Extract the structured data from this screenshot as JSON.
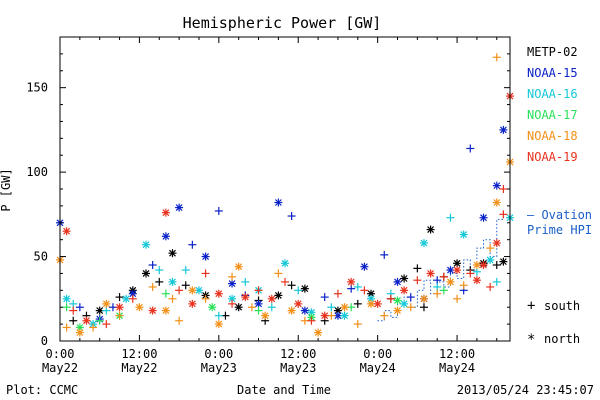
{
  "chart_data": {
    "type": "scatter",
    "title": "Hemispheric Power [GW]",
    "ylabel": "P [GW]",
    "xlabel": "Date and Time",
    "xlim": [
      0,
      68
    ],
    "ylim": [
      0,
      180
    ],
    "yticks": [
      {
        "value": 0,
        "label": "0"
      },
      {
        "value": 50,
        "label": "50"
      },
      {
        "value": 100,
        "label": "100"
      },
      {
        "value": 150,
        "label": "150"
      }
    ],
    "xticks": [
      {
        "value": 0,
        "line1": "0:00",
        "line2": "May22"
      },
      {
        "value": 12,
        "line1": "12:00",
        "line2": "May22"
      },
      {
        "value": 24,
        "line1": "0:00",
        "line2": "May23"
      },
      {
        "value": 36,
        "line1": "12:00",
        "line2": "May23"
      },
      {
        "value": 48,
        "line1": "0:00",
        "line2": "May24"
      },
      {
        "value": 60,
        "line1": "12:00",
        "line2": "May24"
      }
    ],
    "legend": [
      {
        "name": "METP-02",
        "color": "#000000"
      },
      {
        "name": "NOAA-15",
        "color": "#0a22c8"
      },
      {
        "name": "NOAA-16",
        "color": "#15c8d8"
      },
      {
        "name": "NOAA-17",
        "color": "#28e05a"
      },
      {
        "name": "NOAA-18",
        "color": "#f29018"
      },
      {
        "name": "NOAA-19",
        "color": "#e8321e"
      }
    ],
    "legend_placement": "right",
    "marker_key": {
      "south_symbol": "+",
      "south_label": "south",
      "north_symbol": "*",
      "north_label": "north"
    },
    "ovation_label_1": "— Ovation",
    "ovation_label_2": "Prime HPI",
    "ovation_color": "#1a5fc8",
    "ovation": {
      "x": [
        48,
        49,
        49,
        50,
        50,
        51,
        51,
        52,
        52,
        53,
        53,
        54,
        54,
        55,
        55,
        56,
        56,
        57,
        57,
        58,
        58,
        59,
        59,
        60,
        60,
        61,
        61,
        62,
        62,
        63,
        63,
        64,
        64,
        65,
        65,
        66,
        66,
        67,
        67
      ],
      "y": [
        12,
        12,
        18,
        18,
        14,
        14,
        22,
        22,
        26,
        26,
        20,
        20,
        30,
        30,
        36,
        36,
        28,
        28,
        35,
        35,
        32,
        32,
        40,
        40,
        37,
        37,
        48,
        48,
        42,
        42,
        55,
        55,
        60,
        60,
        50,
        50,
        72,
        72,
        76
      ]
    },
    "series": [
      {
        "name": "METP-02",
        "color": "#000000",
        "points": [
          [
            2,
            12,
            "s"
          ],
          [
            4,
            15,
            "s"
          ],
          [
            6,
            18,
            "n"
          ],
          [
            9,
            26,
            "s"
          ],
          [
            11,
            30,
            "n"
          ],
          [
            13,
            40,
            "n"
          ],
          [
            15,
            35,
            "s"
          ],
          [
            17,
            52,
            "n"
          ],
          [
            19,
            33,
            "s"
          ],
          [
            22,
            27,
            "n"
          ],
          [
            25,
            15,
            "s"
          ],
          [
            27,
            20,
            "n"
          ],
          [
            30,
            24,
            "s"
          ],
          [
            33,
            27,
            "n"
          ],
          [
            35,
            33,
            "s"
          ],
          [
            37,
            31,
            "n"
          ],
          [
            40,
            12,
            "s"
          ],
          [
            42,
            18,
            "n"
          ],
          [
            45,
            22,
            "s"
          ],
          [
            47,
            28,
            "n"
          ],
          [
            50,
            25,
            "s"
          ],
          [
            52,
            37,
            "n"
          ],
          [
            54,
            43,
            "s"
          ],
          [
            56,
            66,
            "n"
          ],
          [
            58,
            38,
            "s"
          ],
          [
            60,
            46,
            "n"
          ],
          [
            62,
            42,
            "s"
          ],
          [
            64,
            46,
            "n"
          ],
          [
            66,
            45,
            "s"
          ],
          [
            67,
            47,
            "n"
          ],
          [
            55,
            20,
            "s"
          ],
          [
            31,
            12,
            "s"
          ]
        ]
      },
      {
        "name": "NOAA-15",
        "color": "#0a22c8",
        "points": [
          [
            0,
            70,
            "n"
          ],
          [
            3,
            20,
            "s"
          ],
          [
            6,
            13,
            "n"
          ],
          [
            8,
            20,
            "s"
          ],
          [
            11,
            28,
            "n"
          ],
          [
            14,
            45,
            "s"
          ],
          [
            16,
            62,
            "n"
          ],
          [
            18,
            79,
            "n"
          ],
          [
            20,
            57,
            "s"
          ],
          [
            22,
            50,
            "n"
          ],
          [
            24,
            77,
            "s"
          ],
          [
            26,
            34,
            "n"
          ],
          [
            28,
            27,
            "s"
          ],
          [
            30,
            22,
            "n"
          ],
          [
            33,
            82,
            "n"
          ],
          [
            35,
            74,
            "s"
          ],
          [
            37,
            18,
            "n"
          ],
          [
            40,
            26,
            "s"
          ],
          [
            42,
            15,
            "n"
          ],
          [
            44,
            31,
            "s"
          ],
          [
            46,
            44,
            "n"
          ],
          [
            49,
            51,
            "s"
          ],
          [
            51,
            35,
            "n"
          ],
          [
            53,
            26,
            "s"
          ],
          [
            55,
            25,
            "n"
          ],
          [
            57,
            36,
            "s"
          ],
          [
            59,
            42,
            "n"
          ],
          [
            62,
            114,
            "s"
          ],
          [
            64,
            73,
            "n"
          ],
          [
            66,
            92,
            "n"
          ],
          [
            67,
            125,
            "n"
          ],
          [
            61,
            30,
            "s"
          ]
        ]
      },
      {
        "name": "NOAA-16",
        "color": "#15c8d8",
        "points": [
          [
            1,
            25,
            "n"
          ],
          [
            2,
            22,
            "s"
          ],
          [
            5,
            10,
            "n"
          ],
          [
            7,
            18,
            "s"
          ],
          [
            10,
            25,
            "n"
          ],
          [
            13,
            57,
            "n"
          ],
          [
            15,
            42,
            "s"
          ],
          [
            17,
            35,
            "n"
          ],
          [
            19,
            42,
            "s"
          ],
          [
            21,
            30,
            "n"
          ],
          [
            24,
            15,
            "s"
          ],
          [
            26,
            25,
            "n"
          ],
          [
            28,
            35,
            "s"
          ],
          [
            30,
            30,
            "n"
          ],
          [
            32,
            20,
            "s"
          ],
          [
            34,
            46,
            "n"
          ],
          [
            36,
            30,
            "s"
          ],
          [
            38,
            17,
            "n"
          ],
          [
            41,
            20,
            "s"
          ],
          [
            43,
            15,
            "n"
          ],
          [
            45,
            32,
            "s"
          ],
          [
            47,
            25,
            "n"
          ],
          [
            50,
            28,
            "s"
          ],
          [
            52,
            22,
            "n"
          ],
          [
            55,
            58,
            "n"
          ],
          [
            57,
            32,
            "s"
          ],
          [
            59,
            73,
            "s"
          ],
          [
            61,
            63,
            "n"
          ],
          [
            63,
            41,
            "s"
          ],
          [
            65,
            48,
            "n"
          ],
          [
            68,
            73,
            "n"
          ],
          [
            66,
            35,
            "s"
          ]
        ]
      },
      {
        "name": "NOAA-17",
        "color": "#28e05a",
        "points": [
          [
            1,
            20,
            "s"
          ],
          [
            3,
            8,
            "n"
          ],
          [
            6,
            12,
            "s"
          ],
          [
            9,
            15,
            "n"
          ],
          [
            16,
            28,
            "s"
          ],
          [
            23,
            20,
            "n"
          ],
          [
            30,
            18,
            "s"
          ],
          [
            38,
            14,
            "n"
          ],
          [
            44,
            20,
            "s"
          ],
          [
            51,
            24,
            "n"
          ],
          [
            58,
            30,
            "s"
          ]
        ]
      },
      {
        "name": "NOAA-18",
        "color": "#f29018",
        "points": [
          [
            0,
            48,
            "n"
          ],
          [
            1,
            8,
            "s"
          ],
          [
            3,
            5,
            "n"
          ],
          [
            5,
            8,
            "s"
          ],
          [
            7,
            22,
            "n"
          ],
          [
            9,
            15,
            "s"
          ],
          [
            12,
            20,
            "n"
          ],
          [
            14,
            32,
            "s"
          ],
          [
            16,
            18,
            "n"
          ],
          [
            18,
            12,
            "s"
          ],
          [
            20,
            30,
            "n"
          ],
          [
            22,
            25,
            "s"
          ],
          [
            24,
            10,
            "n"
          ],
          [
            26,
            38,
            "s"
          ],
          [
            27,
            44,
            "n"
          ],
          [
            29,
            20,
            "s"
          ],
          [
            31,
            15,
            "n"
          ],
          [
            33,
            40,
            "s"
          ],
          [
            35,
            18,
            "n"
          ],
          [
            37,
            12,
            "s"
          ],
          [
            39,
            5,
            "n"
          ],
          [
            41,
            15,
            "s"
          ],
          [
            43,
            20,
            "n"
          ],
          [
            45,
            10,
            "s"
          ],
          [
            47,
            22,
            "n"
          ],
          [
            49,
            15,
            "s"
          ],
          [
            51,
            18,
            "n"
          ],
          [
            53,
            20,
            "s"
          ],
          [
            55,
            25,
            "n"
          ],
          [
            57,
            28,
            "s"
          ],
          [
            59,
            35,
            "n"
          ],
          [
            61,
            33,
            "s"
          ],
          [
            63,
            45,
            "n"
          ],
          [
            65,
            55,
            "s"
          ],
          [
            66,
            82,
            "n"
          ],
          [
            66,
            168,
            "s"
          ],
          [
            68,
            106,
            "n"
          ],
          [
            60,
            25,
            "s"
          ],
          [
            17,
            25,
            "s"
          ]
        ]
      },
      {
        "name": "NOAA-19",
        "color": "#e8321e",
        "points": [
          [
            1,
            65,
            "n"
          ],
          [
            2,
            18,
            "s"
          ],
          [
            4,
            12,
            "n"
          ],
          [
            7,
            10,
            "s"
          ],
          [
            9,
            20,
            "n"
          ],
          [
            11,
            25,
            "s"
          ],
          [
            14,
            18,
            "n"
          ],
          [
            16,
            76,
            "n"
          ],
          [
            18,
            30,
            "s"
          ],
          [
            20,
            22,
            "n"
          ],
          [
            22,
            40,
            "s"
          ],
          [
            24,
            28,
            "n"
          ],
          [
            26,
            22,
            "s"
          ],
          [
            28,
            26,
            "n"
          ],
          [
            30,
            30,
            "s"
          ],
          [
            32,
            25,
            "n"
          ],
          [
            34,
            35,
            "s"
          ],
          [
            36,
            22,
            "n"
          ],
          [
            38,
            12,
            "s"
          ],
          [
            40,
            15,
            "n"
          ],
          [
            42,
            28,
            "s"
          ],
          [
            44,
            35,
            "n"
          ],
          [
            46,
            30,
            "s"
          ],
          [
            48,
            22,
            "n"
          ],
          [
            50,
            25,
            "s"
          ],
          [
            52,
            30,
            "n"
          ],
          [
            54,
            36,
            "s"
          ],
          [
            56,
            40,
            "n"
          ],
          [
            58,
            38,
            "s"
          ],
          [
            60,
            42,
            "n"
          ],
          [
            62,
            40,
            "s"
          ],
          [
            64,
            45,
            "n"
          ],
          [
            66,
            58,
            "n"
          ],
          [
            67,
            75,
            "s"
          ],
          [
            67,
            90,
            "s"
          ],
          [
            68,
            145,
            "n"
          ],
          [
            65,
            32,
            "s"
          ],
          [
            63,
            36,
            "n"
          ]
        ]
      }
    ]
  },
  "footer": {
    "left": "Plot: CCMC",
    "timestamp": "2013/05/24 23:45:07"
  }
}
